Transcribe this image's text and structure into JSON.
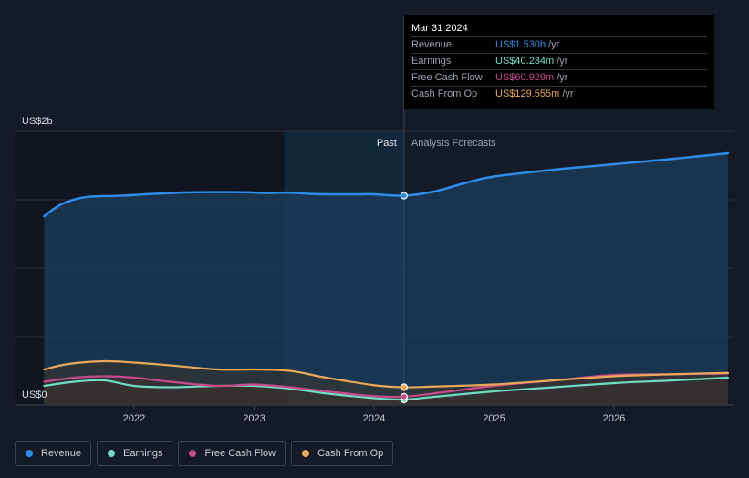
{
  "chart_data": {
    "type": "area",
    "y_unit_label_top": "US$2b",
    "y_unit_label_bottom": "US$0",
    "ylim": [
      0,
      2.0
    ],
    "xlim": [
      2021.2,
      2026.95
    ],
    "x_ticks": [
      {
        "value": 2022,
        "label": "2022"
      },
      {
        "value": 2023,
        "label": "2023"
      },
      {
        "value": 2024,
        "label": "2024"
      },
      {
        "value": 2025,
        "label": "2025"
      },
      {
        "value": 2026,
        "label": "2026"
      }
    ],
    "past_label": "Past",
    "forecast_label": "Analysts Forecasts",
    "divider_x": 2024.25,
    "highlight_start_x": 2023.25,
    "series": [
      {
        "name": "Revenue",
        "color": "#2e8be6",
        "fill": "#1b3e5e",
        "points": [
          [
            2021.25,
            1.38
          ],
          [
            2021.4,
            1.47
          ],
          [
            2021.6,
            1.52
          ],
          [
            2021.9,
            1.53
          ],
          [
            2022.2,
            1.545
          ],
          [
            2022.5,
            1.555
          ],
          [
            2022.9,
            1.555
          ],
          [
            2023.1,
            1.55
          ],
          [
            2023.3,
            1.552
          ],
          [
            2023.5,
            1.542
          ],
          [
            2023.8,
            1.54
          ],
          [
            2024.0,
            1.54
          ],
          [
            2024.25,
            1.53
          ],
          [
            2024.5,
            1.56
          ],
          [
            2024.75,
            1.62
          ],
          [
            2025.0,
            1.67
          ],
          [
            2025.5,
            1.72
          ],
          [
            2026.0,
            1.76
          ],
          [
            2026.5,
            1.8
          ],
          [
            2026.95,
            1.84
          ]
        ]
      },
      {
        "name": "Earnings",
        "color": "#6fdcc3",
        "fill": "#2b3a3e",
        "points": [
          [
            2021.25,
            0.14
          ],
          [
            2021.5,
            0.17
          ],
          [
            2021.75,
            0.18
          ],
          [
            2022.0,
            0.14
          ],
          [
            2022.3,
            0.13
          ],
          [
            2022.7,
            0.14
          ],
          [
            2023.0,
            0.14
          ],
          [
            2023.3,
            0.12
          ],
          [
            2023.6,
            0.085
          ],
          [
            2024.0,
            0.05
          ],
          [
            2024.25,
            0.04
          ],
          [
            2024.5,
            0.06
          ],
          [
            2025.0,
            0.1
          ],
          [
            2025.5,
            0.13
          ],
          [
            2026.0,
            0.16
          ],
          [
            2026.5,
            0.18
          ],
          [
            2026.95,
            0.2
          ]
        ]
      },
      {
        "name": "Free Cash Flow",
        "color": "#c64b8a",
        "fill": "#3b2838",
        "points": [
          [
            2021.25,
            0.17
          ],
          [
            2021.5,
            0.2
          ],
          [
            2021.75,
            0.21
          ],
          [
            2022.0,
            0.2
          ],
          [
            2022.3,
            0.17
          ],
          [
            2022.7,
            0.14
          ],
          [
            2023.0,
            0.15
          ],
          [
            2023.3,
            0.13
          ],
          [
            2023.6,
            0.1
          ],
          [
            2024.0,
            0.065
          ],
          [
            2024.25,
            0.061
          ],
          [
            2024.5,
            0.085
          ],
          [
            2025.0,
            0.14
          ],
          [
            2025.5,
            0.18
          ],
          [
            2026.0,
            0.22
          ],
          [
            2026.5,
            0.225
          ],
          [
            2026.95,
            0.23
          ]
        ]
      },
      {
        "name": "Cash From Op",
        "color": "#e8a85c",
        "fill": "#3a3428",
        "points": [
          [
            2021.25,
            0.26
          ],
          [
            2021.45,
            0.3
          ],
          [
            2021.75,
            0.32
          ],
          [
            2022.0,
            0.31
          ],
          [
            2022.3,
            0.29
          ],
          [
            2022.7,
            0.26
          ],
          [
            2023.0,
            0.26
          ],
          [
            2023.3,
            0.25
          ],
          [
            2023.6,
            0.2
          ],
          [
            2024.0,
            0.145
          ],
          [
            2024.25,
            0.13
          ],
          [
            2024.5,
            0.135
          ],
          [
            2025.0,
            0.15
          ],
          [
            2025.5,
            0.18
          ],
          [
            2026.0,
            0.21
          ],
          [
            2026.5,
            0.225
          ],
          [
            2026.95,
            0.235
          ]
        ]
      }
    ]
  },
  "tooltip": {
    "date": "Mar 31 2024",
    "rows": [
      {
        "label": "Revenue",
        "value": "US$1.530b",
        "unit": "/yr",
        "color": "#2e8be6"
      },
      {
        "label": "Earnings",
        "value": "US$40.234m",
        "unit": "/yr",
        "color": "#6fdcc3"
      },
      {
        "label": "Free Cash Flow",
        "value": "US$60.929m",
        "unit": "/yr",
        "color": "#c64b8a"
      },
      {
        "label": "Cash From Op",
        "value": "US$129.555m",
        "unit": "/yr",
        "color": "#e8a85c"
      }
    ]
  },
  "legend": [
    {
      "label": "Revenue",
      "color": "#2e8be6"
    },
    {
      "label": "Earnings",
      "color": "#6fdcc3"
    },
    {
      "label": "Free Cash Flow",
      "color": "#c64b8a"
    },
    {
      "label": "Cash From Op",
      "color": "#e8a85c"
    }
  ]
}
